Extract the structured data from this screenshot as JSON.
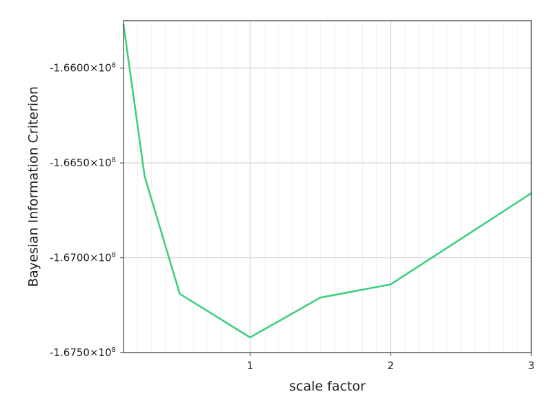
{
  "chart_data": {
    "type": "line",
    "xlabel": "scale factor",
    "ylabel": "Bayesian Information Criterion",
    "xlim": [
      0.1,
      3
    ],
    "ylim": [
      -167500000,
      -165750000
    ],
    "x_ticks": [
      1,
      2,
      3
    ],
    "x_tick_labels": [
      "1",
      "2",
      "3"
    ],
    "y_ticks": [
      -167500000,
      -167000000,
      -166500000,
      -166000000
    ],
    "y_tick_labels": [
      {
        "mantissa": "-1.6750×10",
        "exp": "8"
      },
      {
        "mantissa": "-1.6700×10",
        "exp": "8"
      },
      {
        "mantissa": "-1.6650×10",
        "exp": "8"
      },
      {
        "mantissa": "-1.6600×10",
        "exp": "8"
      }
    ],
    "x_minor_step": 0.1,
    "y_minor_step": 10000000,
    "grid": true,
    "series": [
      {
        "color": "#3ecf81",
        "x": [
          0.1,
          0.25,
          0.5,
          1.0,
          1.5,
          2.0,
          3.0
        ],
        "y": [
          -165770000,
          -166570000,
          -167190000,
          -167420000,
          -167210000,
          -167140000,
          -166660000
        ]
      }
    ]
  }
}
